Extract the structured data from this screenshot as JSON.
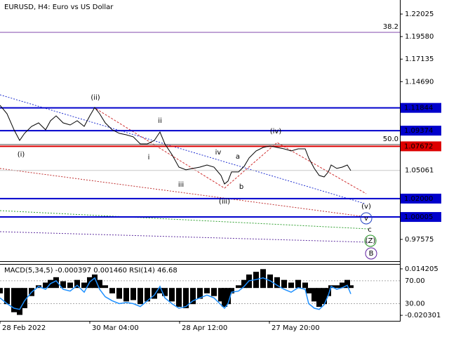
{
  "chart_data": [
    {
      "type": "line",
      "title": "EURUSD, H4:  Euro vs US Dollar",
      "x": [
        0,
        10,
        20,
        28,
        35,
        45,
        55,
        65,
        72,
        80,
        90,
        100,
        110,
        120,
        128,
        135,
        142,
        150,
        160,
        170,
        180,
        190,
        200,
        210,
        220,
        228,
        235,
        245,
        255,
        265,
        275,
        285,
        295,
        305,
        315,
        320,
        325,
        330,
        340,
        348,
        355,
        365,
        375,
        385,
        395,
        405,
        415,
        425,
        435,
        440,
        448,
        455,
        462,
        468,
        472,
        480,
        488,
        495,
        500
      ],
      "series": [
        {
          "color": "#000000",
          "values": [
            1.1212,
            1.1121,
            1.0946,
            1.0831,
            1.0908,
            1.0984,
            1.1022,
            1.0946,
            1.1045,
            1.1098,
            1.1022,
            1.0999,
            1.1045,
            1.0984,
            1.1098,
            1.1189,
            1.1121,
            1.1022,
            1.0946,
            1.0908,
            1.0892,
            1.087,
            1.0793,
            1.0793,
            1.0831,
            1.0923,
            1.0793,
            1.0679,
            1.0542,
            1.0512,
            1.0527,
            1.0542,
            1.0565,
            1.0542,
            1.0451,
            1.0359,
            1.039,
            1.0489,
            1.0489,
            1.055,
            1.0641,
            1.0717,
            1.0755,
            1.0771,
            1.0755,
            1.074,
            1.0717,
            1.074,
            1.074,
            1.0641,
            1.0527,
            1.0451,
            1.0435,
            1.0489,
            1.0565,
            1.0527,
            1.0542,
            1.0565,
            1.0504
          ]
        }
      ],
      "xlim": [
        0,
        570
      ],
      "ylim": [
        0.9521,
        1.2355
      ],
      "yticks": [
        1.22025,
        {
          "value": 1.1958,
          "label": "1.19580"
        },
        1.17135,
        {
          "value": 1.1469,
          "label": "1.14690"
        },
        0.97575
      ],
      "levels": [
        {
          "value": 1.11844,
          "color": "#0000cc"
        },
        {
          "value": 1.09374,
          "color": "#0000cc"
        },
        {
          "value": 1.07672,
          "color": "#dd0000"
        },
        {
          "value": 1.02,
          "label": "1.02000",
          "color": "#0000cc"
        },
        {
          "value": 1.00005,
          "color": "#0000cc"
        }
      ],
      "last_price": 1.05061,
      "fibo": [
        {
          "label": "38.2",
          "value": 1.2004
        },
        {
          "label": "50.0",
          "value": 1.0787
        }
      ],
      "annotations": [
        {
          "text": "(i)",
          "color": "#cc2020"
        },
        {
          "text": "(ii)",
          "color": "#cc2020"
        },
        {
          "text": "ii",
          "color": "#808080"
        },
        {
          "text": "i",
          "color": "#808080"
        },
        {
          "text": "iii",
          "color": "#808080"
        },
        {
          "text": "iv",
          "color": "#808080"
        },
        {
          "text": "a",
          "color": "#808080"
        },
        {
          "text": "b",
          "color": "#808080"
        },
        {
          "text": "(iii)",
          "color": "#cc2020"
        },
        {
          "text": "(iv)",
          "color": "#cc2020"
        },
        {
          "text": "(v)",
          "color": "#cc2020"
        },
        {
          "text": "v",
          "color": "#2040c0"
        },
        {
          "text": "c",
          "color": "#b04020"
        },
        {
          "text": "(Z)",
          "color": "#209020"
        },
        {
          "text": "B",
          "color": "#6020a0"
        }
      ]
    },
    {
      "type": "bar",
      "title": "MACD(5,34,5) -0.000397 0.001460 RSI(14) 46.68",
      "x": [
        0,
        10,
        20,
        28,
        35,
        45,
        55,
        65,
        72,
        80,
        90,
        100,
        110,
        120,
        128,
        135,
        142,
        150,
        160,
        170,
        180,
        190,
        200,
        210,
        220,
        228,
        235,
        245,
        255,
        265,
        275,
        285,
        295,
        305,
        315,
        320,
        325,
        330,
        340,
        348,
        355,
        365,
        375,
        385,
        395,
        405,
        415,
        425,
        435,
        440,
        448,
        455,
        462,
        468,
        472,
        480,
        488,
        495,
        500
      ],
      "series": [
        {
          "color": "#000000",
          "values": [
            -0.004,
            -0.012,
            -0.018,
            -0.02,
            -0.015,
            -0.006,
            0.002,
            0.004,
            0.006,
            0.008,
            0.005,
            0.004,
            0.006,
            0.004,
            0.008,
            0.01,
            0.006,
            0.002,
            -0.004,
            -0.008,
            -0.01,
            -0.009,
            -0.012,
            -0.01,
            -0.008,
            -0.004,
            -0.006,
            -0.01,
            -0.014,
            -0.015,
            -0.012,
            -0.008,
            -0.004,
            -0.006,
            -0.01,
            -0.014,
            -0.012,
            -0.004,
            0.002,
            0.006,
            0.01,
            0.012,
            0.014,
            0.01,
            0.008,
            0.006,
            0.004,
            0.006,
            0.004,
            -0.004,
            -0.01,
            -0.014,
            -0.012,
            -0.006,
            0.002,
            0.002,
            0.004,
            0.006,
            0.002
          ]
        },
        {
          "color": "#1e90ff",
          "axis": "y2",
          "values": [
            40,
            30,
            22,
            20,
            35,
            50,
            60,
            55,
            65,
            70,
            55,
            52,
            62,
            50,
            68,
            75,
            55,
            42,
            35,
            30,
            32,
            30,
            25,
            35,
            45,
            60,
            40,
            30,
            22,
            25,
            35,
            40,
            45,
            40,
            28,
            22,
            30,
            50,
            52,
            60,
            70,
            72,
            75,
            70,
            62,
            55,
            50,
            58,
            55,
            30,
            22,
            20,
            28,
            45,
            60,
            55,
            58,
            62,
            47
          ]
        }
      ],
      "xlim": [
        0,
        570
      ],
      "ylim": [
        -0.02442,
        0.0173
      ],
      "yticks": [
        0.014205,
        -0.020301
      ],
      "y2lim": [
        0,
        98
      ],
      "y2ticks": [
        {
          "value": 70,
          "label": "70.00"
        },
        {
          "value": 30,
          "label": "30.00"
        }
      ],
      "xticks": [
        {
          "value": 0,
          "label": "28 Feb 2022"
        },
        {
          "value": 128,
          "label": "30 Mar 04:00"
        },
        {
          "value": 256,
          "label": "28 Apr 12:00"
        },
        {
          "value": 384,
          "label": "27 May 20:00"
        }
      ]
    }
  ]
}
